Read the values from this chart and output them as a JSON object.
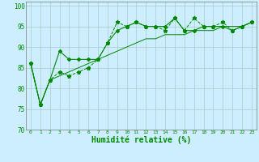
{
  "background_color": "#cceeff",
  "grid_color": "#aacccc",
  "line_color": "#008800",
  "xlabel": "Humidité relative (%)",
  "xlabel_fontsize": 7,
  "ylim": [
    70,
    101
  ],
  "xlim": [
    -0.5,
    23.5
  ],
  "yticks": [
    70,
    75,
    80,
    85,
    90,
    95,
    100
  ],
  "xtick_labels": [
    "0",
    "1",
    "2",
    "3",
    "4",
    "5",
    "6",
    "7",
    "8",
    "9",
    "10",
    "11",
    "12",
    "13",
    "14",
    "15",
    "16",
    "17",
    "18",
    "19",
    "20",
    "21",
    "22",
    "23"
  ],
  "series1_x": [
    0,
    1,
    2,
    3,
    4,
    5,
    6,
    7,
    8,
    9,
    10,
    11,
    12,
    13,
    14,
    15,
    16,
    17,
    18,
    19,
    20,
    21,
    22,
    23
  ],
  "series1_y": [
    86,
    76,
    82,
    89,
    87,
    87,
    87,
    87,
    91,
    94,
    95,
    96,
    95,
    95,
    95,
    97,
    94,
    94,
    95,
    95,
    95,
    94,
    95,
    96
  ],
  "series2_x": [
    0,
    1,
    2,
    3,
    4,
    5,
    6,
    7,
    8,
    9,
    10,
    11,
    12,
    13,
    14,
    15,
    16,
    17,
    18,
    19,
    20,
    21,
    22,
    23
  ],
  "series2_y": [
    86,
    76,
    82,
    84,
    83,
    84,
    85,
    87,
    91,
    96,
    95,
    96,
    95,
    95,
    94,
    97,
    94,
    97,
    95,
    95,
    96,
    94,
    95,
    96
  ],
  "series3_x": [
    0,
    1,
    2,
    3,
    4,
    5,
    6,
    7,
    8,
    9,
    10,
    11,
    12,
    13,
    14,
    15,
    16,
    17,
    18,
    19,
    20,
    21,
    22,
    23
  ],
  "series3_y": [
    86,
    76,
    82,
    83,
    84,
    85,
    86,
    87,
    88,
    89,
    90,
    91,
    92,
    92,
    93,
    93,
    93,
    94,
    94,
    94,
    95,
    95,
    95,
    96
  ]
}
